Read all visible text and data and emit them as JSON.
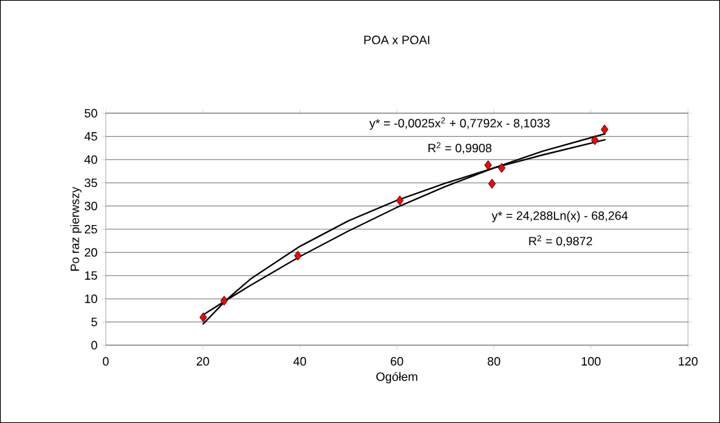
{
  "chart_data": {
    "type": "scatter",
    "title": "POA x POAI",
    "xlabel": "Ogółem",
    "ylabel": "Po raz pierwszy",
    "xlim": [
      0,
      120
    ],
    "xticks": [
      0,
      20,
      40,
      60,
      80,
      100,
      120
    ],
    "ylim": [
      0,
      50
    ],
    "yticks": [
      0,
      5,
      10,
      15,
      20,
      25,
      30,
      35,
      40,
      45,
      50
    ],
    "grid": "y",
    "series": [
      {
        "color": "#ff0000",
        "marker": "diamond",
        "x": [
          20.1,
          24.4,
          39.6,
          60.6,
          78.8,
          79.6,
          81.6,
          100.8,
          102.8
        ],
        "values": [
          6,
          9.6,
          19.3,
          31.2,
          38.8,
          34.8,
          38.2,
          44.2,
          46.5
        ]
      },
      {
        "type": "line",
        "color": "#000000",
        "marker": "none",
        "line_style": "solid",
        "x": [
          20,
          25,
          30,
          40,
          50,
          60,
          70,
          80,
          90,
          103
        ],
        "values": [
          6.5,
          9.8,
          13.0,
          19.1,
          24.6,
          29.7,
          34.2,
          38.2,
          41.8,
          45.6
        ]
      },
      {
        "type": "line",
        "color": "#000000",
        "marker": "none",
        "line_style": "solid",
        "x": [
          20,
          25,
          30,
          40,
          50,
          60,
          70,
          80,
          90,
          103
        ],
        "values": [
          4.5,
          9.9,
          14.4,
          21.3,
          26.8,
          31.2,
          34.9,
          38.2,
          41.0,
          44.3
        ]
      }
    ],
    "annotations": [
      "y* = -0,0025x$^{2}$ + 0,7792x - 8,1033",
      "R$^{2}$ = 0,9908",
      "y* = 24,288Ln(x) - 68,264",
      "R$^{2}$ = 0,9872"
    ]
  }
}
